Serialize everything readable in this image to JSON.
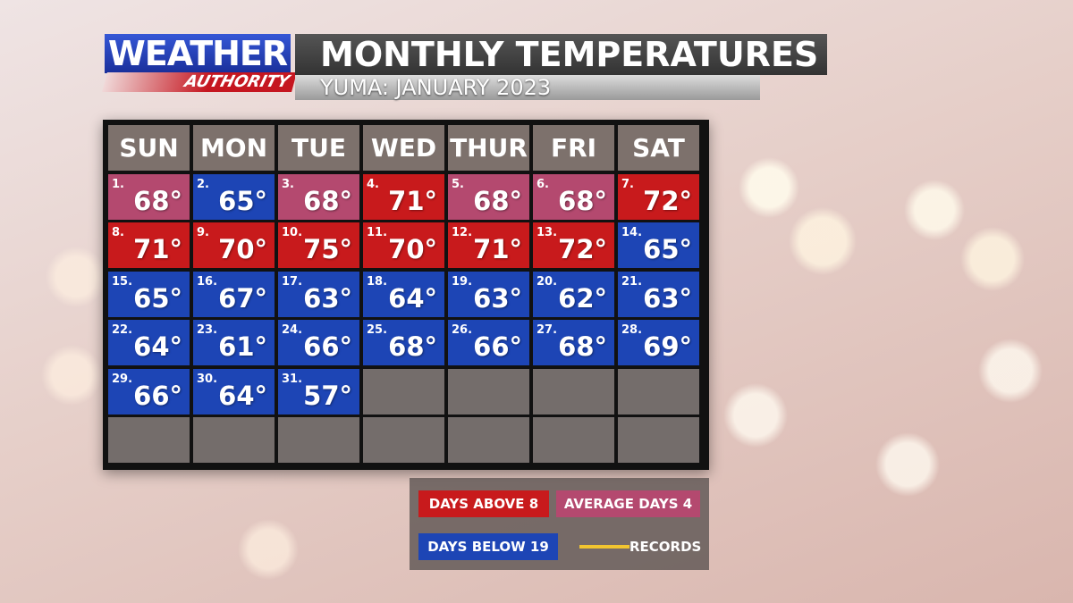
{
  "header": {
    "logo_top": "WEATHER",
    "logo_bottom": "AUTHORITY",
    "title": "MONTHLY TEMPERATURES",
    "subtitle": "YUMA: JANUARY 2023"
  },
  "calendar": {
    "weekdays": [
      "SUN",
      "MON",
      "TUE",
      "WED",
      "THUR",
      "FRI",
      "SAT"
    ],
    "days": [
      {
        "label": "1.",
        "temp": "68°",
        "color": "#b4496f"
      },
      {
        "label": "2.",
        "temp": "65°",
        "color": "#1d45b5"
      },
      {
        "label": "3.",
        "temp": "68°",
        "color": "#b4496f"
      },
      {
        "label": "4.",
        "temp": "71°",
        "color": "#c81a1c"
      },
      {
        "label": "5.",
        "temp": "68°",
        "color": "#b4496f"
      },
      {
        "label": "6.",
        "temp": "68°",
        "color": "#b4496f"
      },
      {
        "label": "7.",
        "temp": "72°",
        "color": "#c81a1c"
      },
      {
        "label": "8.",
        "temp": "71°",
        "color": "#c81a1c"
      },
      {
        "label": "9.",
        "temp": "70°",
        "color": "#c81a1c"
      },
      {
        "label": "10.",
        "temp": "75°",
        "color": "#c81a1c"
      },
      {
        "label": "11.",
        "temp": "70°",
        "color": "#c81a1c"
      },
      {
        "label": "12.",
        "temp": "71°",
        "color": "#c81a1c"
      },
      {
        "label": "13.",
        "temp": "72°",
        "color": "#c81a1c"
      },
      {
        "label": "14.",
        "temp": "65°",
        "color": "#1d45b5"
      },
      {
        "label": "15.",
        "temp": "65°",
        "color": "#1d45b5"
      },
      {
        "label": "16.",
        "temp": "67°",
        "color": "#1d45b5"
      },
      {
        "label": "17.",
        "temp": "63°",
        "color": "#1d45b5"
      },
      {
        "label": "18.",
        "temp": "64°",
        "color": "#1d45b5"
      },
      {
        "label": "19.",
        "temp": "63°",
        "color": "#1d45b5"
      },
      {
        "label": "20.",
        "temp": "62°",
        "color": "#1d45b5"
      },
      {
        "label": "21.",
        "temp": "63°",
        "color": "#1d45b5"
      },
      {
        "label": "22.",
        "temp": "64°",
        "color": "#1d45b5"
      },
      {
        "label": "23.",
        "temp": "61°",
        "color": "#1d45b5"
      },
      {
        "label": "24.",
        "temp": "66°",
        "color": "#1d45b5"
      },
      {
        "label": "25.",
        "temp": "68°",
        "color": "#1d45b5"
      },
      {
        "label": "26.",
        "temp": "66°",
        "color": "#1d45b5"
      },
      {
        "label": "27.",
        "temp": "68°",
        "color": "#1d45b5"
      },
      {
        "label": "28.",
        "temp": "69°",
        "color": "#1d45b5"
      },
      {
        "label": "29.",
        "temp": "66°",
        "color": "#1d45b5"
      },
      {
        "label": "30.",
        "temp": "64°",
        "color": "#1d45b5"
      },
      {
        "label": "31.",
        "temp": "57°",
        "color": "#1d45b5"
      }
    ]
  },
  "legend": {
    "items": [
      {
        "label": "DAYS ABOVE 8",
        "color": "#c81a1c"
      },
      {
        "label": "AVERAGE DAYS 4",
        "color": "#b4496f"
      },
      {
        "label": "DAYS BELOW 19",
        "color": "#1d45b5"
      },
      {
        "label": "RECORDS",
        "color": "#f2c530"
      }
    ]
  }
}
